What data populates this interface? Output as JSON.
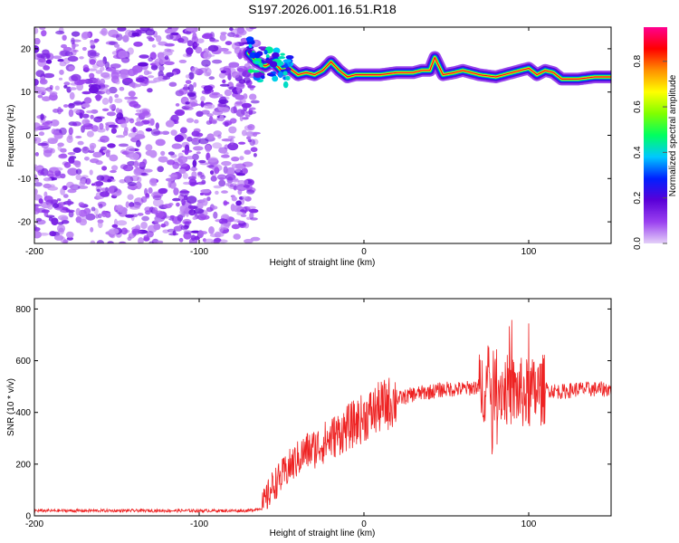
{
  "title": "S197.2026.001.16.51.R18",
  "chart_data": [
    {
      "type": "heatmap",
      "xlabel": "Height of straight line (km)",
      "ylabel": "Frequency (Hz)",
      "xlim": [
        -200,
        150
      ],
      "ylim": [
        -25,
        25
      ],
      "xticks": [
        -200,
        -100,
        0,
        100
      ],
      "yticks": [
        -20,
        -10,
        0,
        10,
        20
      ],
      "colorbar": {
        "label": "Normalized spectral amplitude",
        "range": [
          0,
          0.95
        ],
        "ticks": [
          0.0,
          0.2,
          0.4,
          0.6,
          0.8
        ],
        "colormap": [
          "#e4d0f8",
          "#9a40f0",
          "#5a00d8",
          "#0020ff",
          "#00c8ff",
          "#00ff60",
          "#80ff00",
          "#ffff00",
          "#ff9000",
          "#ff0000",
          "#ff0090"
        ]
      },
      "noise_region": {
        "x_range": [
          -200,
          -70
        ],
        "freq_range": [
          -25,
          25
        ]
      },
      "signal_ridge": {
        "x": [
          -70,
          -65,
          -60,
          -55,
          -50,
          -45,
          -40,
          -35,
          -30,
          -25,
          -20,
          -15,
          -10,
          -5,
          0,
          10,
          20,
          30,
          35,
          40,
          43,
          48,
          55,
          60,
          70,
          80,
          85,
          90,
          95,
          100,
          105,
          110,
          115,
          120,
          130,
          140,
          150
        ],
        "freq": [
          19,
          17,
          16,
          17,
          15,
          15.5,
          14,
          14.5,
          14,
          15,
          17,
          15,
          13.5,
          14,
          14,
          14,
          14.5,
          14.5,
          15,
          15,
          18,
          14,
          14.5,
          15,
          14,
          13.5,
          14,
          14.5,
          15,
          15.5,
          14,
          15,
          14.5,
          13,
          13,
          13.5,
          13.5
        ]
      }
    },
    {
      "type": "line",
      "xlabel": "Height of straight line (km)",
      "ylabel": "SNR (10 * v/v)",
      "xlim": [
        -200,
        150
      ],
      "ylim": [
        0,
        840
      ],
      "xticks": [
        -200,
        -100,
        0,
        100
      ],
      "yticks": [
        0,
        200,
        400,
        600,
        800
      ],
      "series": [
        {
          "color": "#ee2222",
          "x": [
            -200,
            -150,
            -100,
            -70,
            -62,
            -55,
            -50,
            -45,
            -40,
            -35,
            -30,
            -25,
            -20,
            -10,
            0,
            10,
            20,
            30,
            40,
            50,
            60,
            70,
            80,
            90,
            100,
            110,
            120,
            130,
            140,
            150
          ],
          "values": [
            20,
            20,
            20,
            20,
            30,
            120,
            150,
            190,
            220,
            250,
            260,
            280,
            300,
            340,
            380,
            420,
            450,
            470,
            480,
            490,
            490,
            500,
            500,
            480,
            470,
            490,
            480,
            490,
            490,
            490
          ]
        }
      ]
    }
  ]
}
